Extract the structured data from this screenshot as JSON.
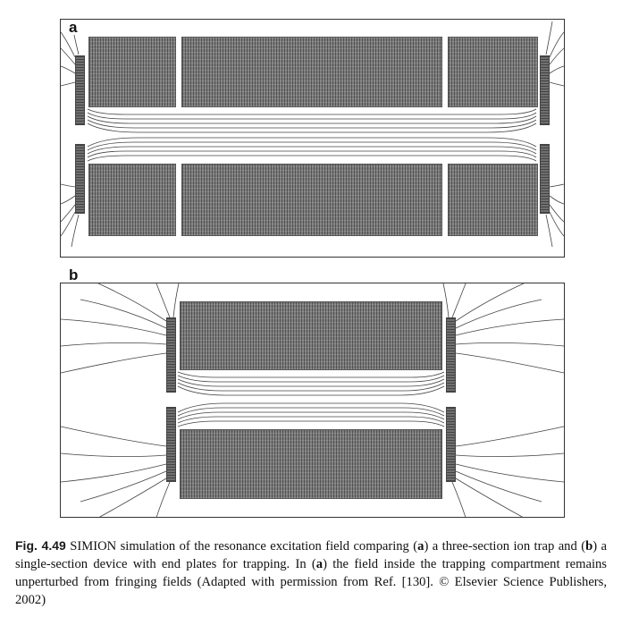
{
  "figure": {
    "panel_a_label": "a",
    "panel_b_label": "b",
    "caption": {
      "fig_label": "Fig. 4.49",
      "text_1": " SIMION simulation of the resonance excitation field comparing (",
      "bold_a_1": "a",
      "text_2": ") a three-section ion trap and (",
      "bold_b": "b",
      "text_3": ") a single-section device with end plates for trapping. In (",
      "bold_a_2": "a",
      "text_4": ") the field inside the trapping compartment remains unperturbed from fringing fields (Adapted with permission from Ref. [130]. © Elsevier Science Publishers, 2002)"
    }
  },
  "colors": {
    "electrode": "#7d7d7d",
    "frame": "#333333",
    "field_line": "#444444"
  }
}
